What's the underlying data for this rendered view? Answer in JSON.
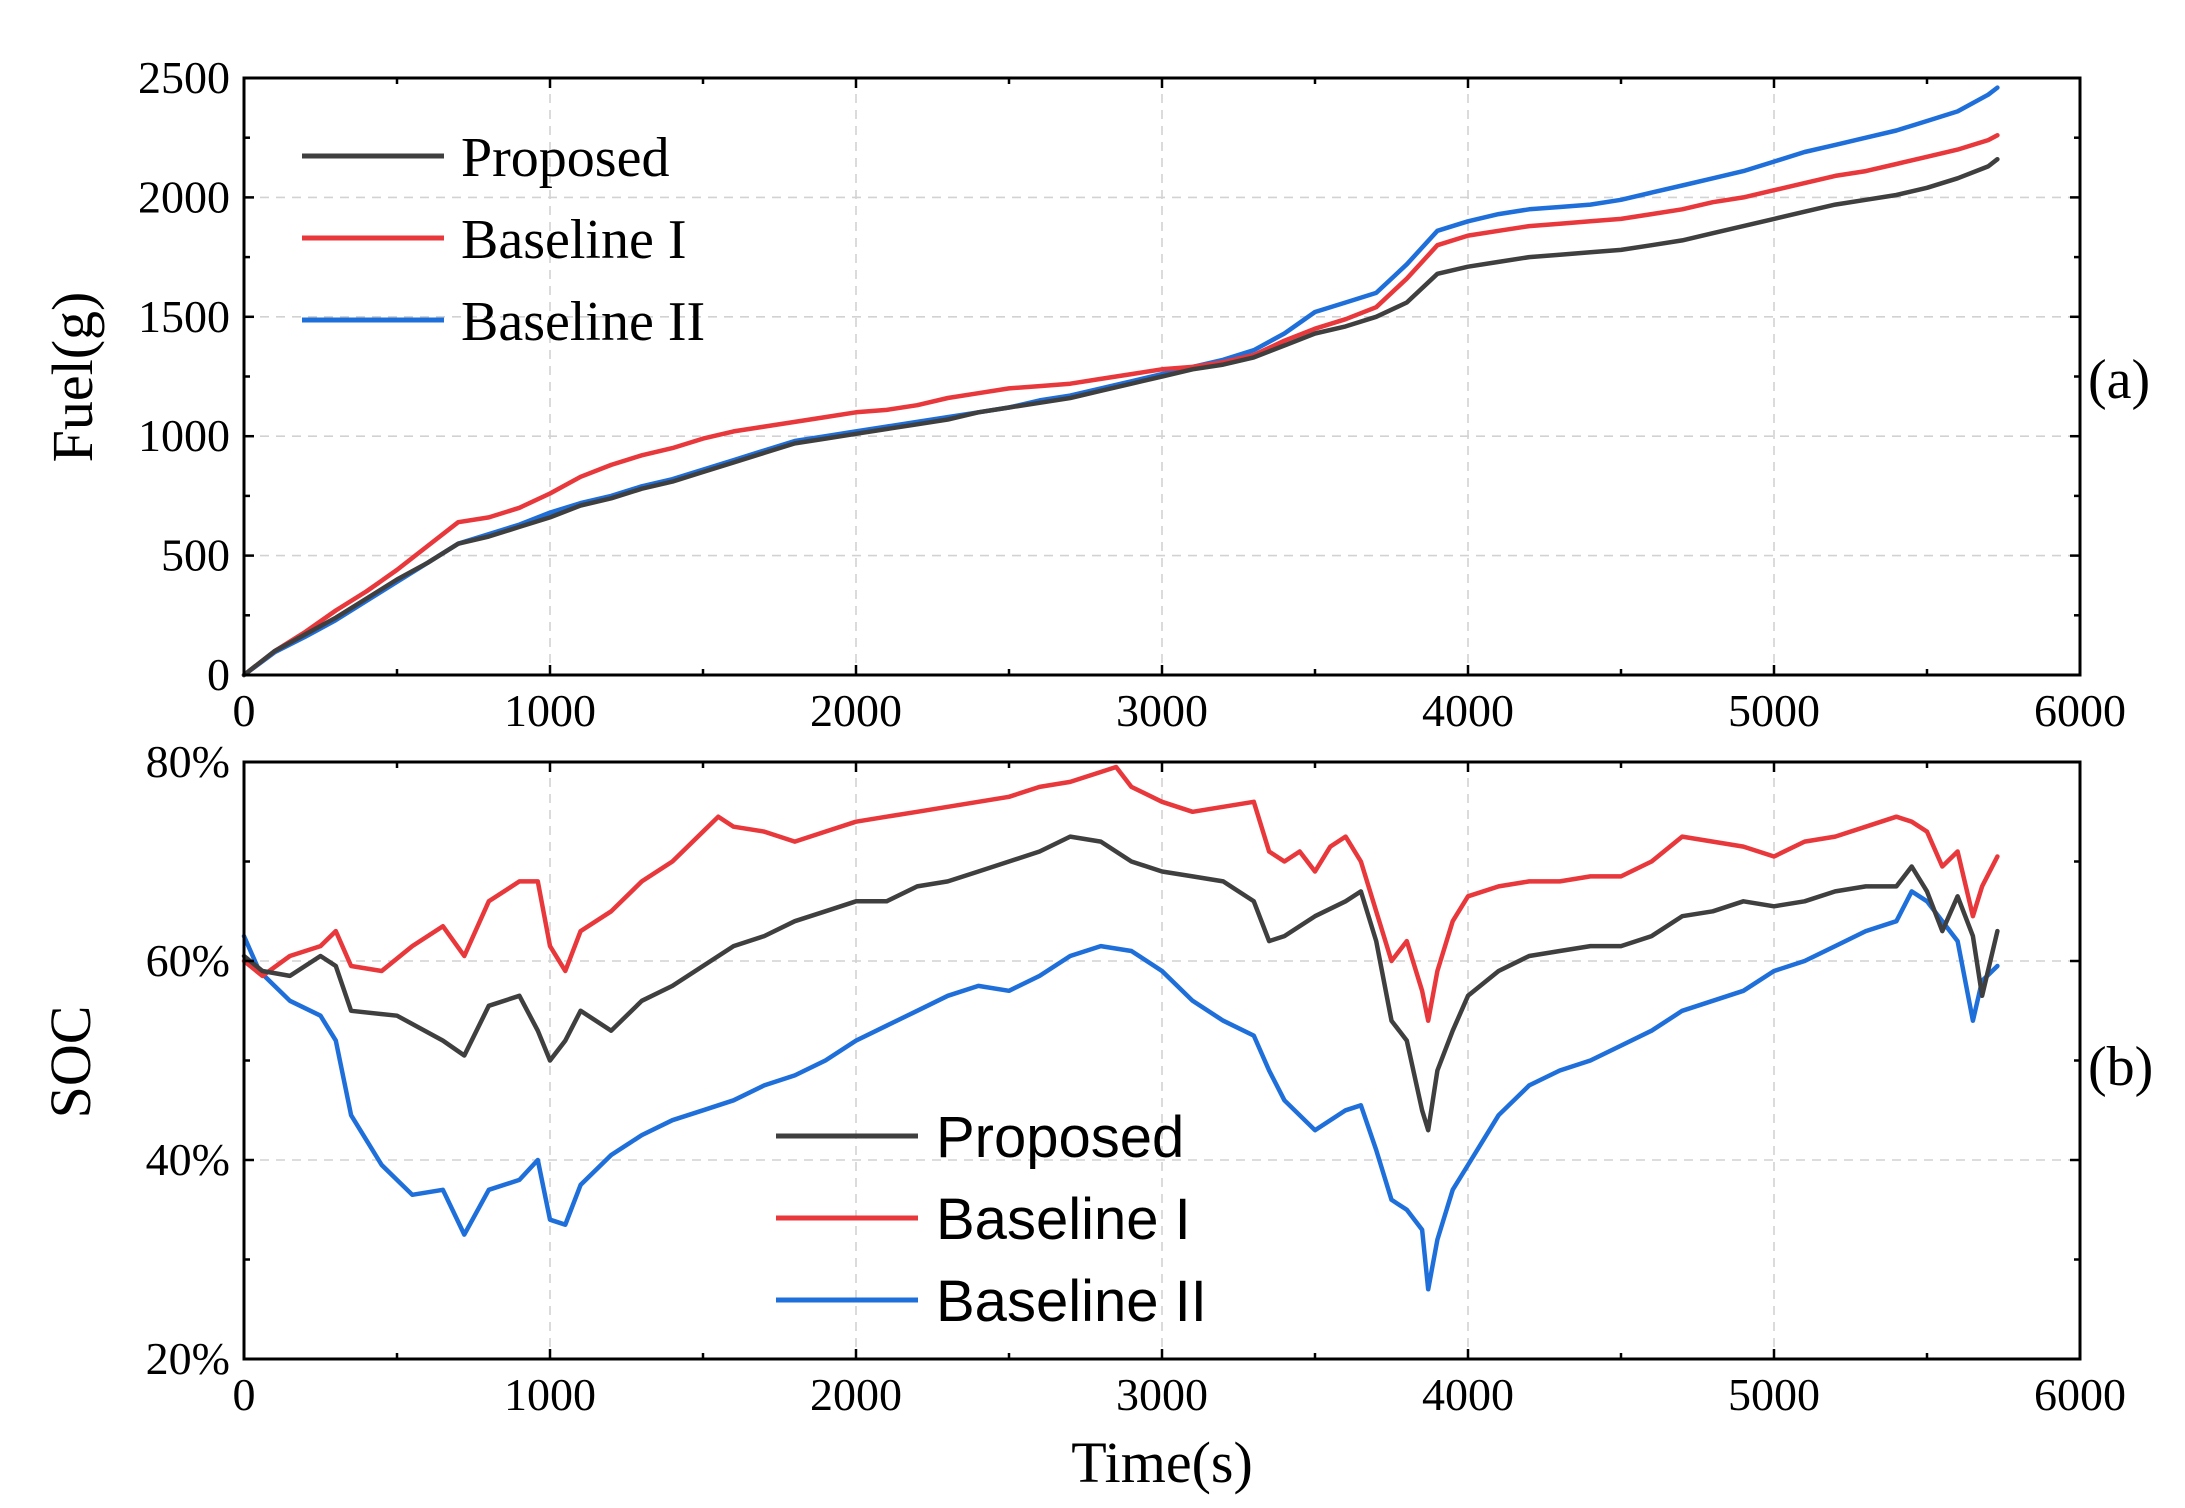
{
  "colors": {
    "Proposed": "#3f3f3f",
    "Baseline I": "#e8383b",
    "Baseline II": "#1f6fdb"
  },
  "chart_data": [
    {
      "type": "line",
      "panel_label": "(a)",
      "title": "",
      "xlabel": "",
      "ylabel": "Fuel(g)",
      "xlim": [
        0,
        6000
      ],
      "ylim": [
        0,
        2500
      ],
      "xticks": [
        0,
        1000,
        2000,
        3000,
        4000,
        5000,
        6000
      ],
      "yticks": [
        0,
        500,
        1000,
        1500,
        2000,
        2500
      ],
      "xtick_labels": [
        "0",
        "1000",
        "2000",
        "3000",
        "4000",
        "5000",
        "6000"
      ],
      "ytick_labels": [
        "0",
        "500",
        "1000",
        "1500",
        "2000",
        "2500"
      ],
      "grid": true,
      "legend_position": "top-left",
      "series": [
        {
          "name": "Proposed",
          "x": [
            0,
            100,
            200,
            300,
            400,
            500,
            600,
            700,
            800,
            900,
            1000,
            1100,
            1200,
            1300,
            1400,
            1500,
            1600,
            1700,
            1800,
            1900,
            2000,
            2100,
            2200,
            2300,
            2400,
            2500,
            2600,
            2700,
            2800,
            2900,
            3000,
            3100,
            3200,
            3300,
            3400,
            3500,
            3600,
            3700,
            3800,
            3900,
            4000,
            4100,
            4200,
            4300,
            4400,
            4500,
            4600,
            4700,
            4800,
            4900,
            5000,
            5100,
            5200,
            5300,
            5400,
            5500,
            5600,
            5700,
            5730
          ],
          "values": [
            0,
            100,
            170,
            240,
            320,
            400,
            470,
            550,
            580,
            620,
            660,
            710,
            740,
            780,
            810,
            850,
            890,
            930,
            970,
            990,
            1010,
            1030,
            1050,
            1070,
            1100,
            1120,
            1140,
            1160,
            1190,
            1220,
            1250,
            1280,
            1300,
            1330,
            1380,
            1430,
            1460,
            1500,
            1560,
            1680,
            1710,
            1730,
            1750,
            1760,
            1770,
            1780,
            1800,
            1820,
            1850,
            1880,
            1910,
            1940,
            1970,
            1990,
            2010,
            2040,
            2080,
            2130,
            2160
          ]
        },
        {
          "name": "Baseline I",
          "x": [
            0,
            100,
            200,
            300,
            400,
            500,
            600,
            700,
            800,
            900,
            1000,
            1100,
            1200,
            1300,
            1400,
            1500,
            1600,
            1700,
            1800,
            1900,
            2000,
            2100,
            2200,
            2300,
            2400,
            2500,
            2600,
            2700,
            2800,
            2900,
            3000,
            3100,
            3200,
            3300,
            3400,
            3500,
            3600,
            3700,
            3800,
            3900,
            4000,
            4100,
            4200,
            4300,
            4400,
            4500,
            4600,
            4700,
            4800,
            4900,
            5000,
            5100,
            5200,
            5300,
            5400,
            5500,
            5600,
            5700,
            5730
          ],
          "values": [
            0,
            100,
            180,
            270,
            350,
            440,
            540,
            640,
            660,
            700,
            760,
            830,
            880,
            920,
            950,
            990,
            1020,
            1040,
            1060,
            1080,
            1100,
            1110,
            1130,
            1160,
            1180,
            1200,
            1210,
            1220,
            1240,
            1260,
            1280,
            1290,
            1310,
            1340,
            1400,
            1450,
            1490,
            1540,
            1660,
            1800,
            1840,
            1860,
            1880,
            1890,
            1900,
            1910,
            1930,
            1950,
            1980,
            2000,
            2030,
            2060,
            2090,
            2110,
            2140,
            2170,
            2200,
            2240,
            2260
          ]
        },
        {
          "name": "Baseline II",
          "x": [
            0,
            100,
            200,
            300,
            400,
            500,
            600,
            700,
            800,
            900,
            1000,
            1100,
            1200,
            1300,
            1400,
            1500,
            1600,
            1700,
            1800,
            1900,
            2000,
            2100,
            2200,
            2300,
            2400,
            2500,
            2600,
            2700,
            2800,
            2900,
            3000,
            3100,
            3200,
            3300,
            3400,
            3500,
            3600,
            3700,
            3800,
            3900,
            4000,
            4100,
            4200,
            4300,
            4400,
            4500,
            4600,
            4700,
            4800,
            4900,
            5000,
            5100,
            5200,
            5300,
            5400,
            5500,
            5600,
            5700,
            5730
          ],
          "values": [
            0,
            95,
            160,
            230,
            310,
            390,
            470,
            550,
            590,
            630,
            680,
            720,
            750,
            790,
            820,
            860,
            900,
            940,
            980,
            1000,
            1020,
            1040,
            1060,
            1080,
            1100,
            1120,
            1150,
            1170,
            1200,
            1230,
            1260,
            1290,
            1320,
            1360,
            1430,
            1520,
            1560,
            1600,
            1720,
            1860,
            1900,
            1930,
            1950,
            1960,
            1970,
            1990,
            2020,
            2050,
            2080,
            2110,
            2150,
            2190,
            2220,
            2250,
            2280,
            2320,
            2360,
            2430,
            2460
          ]
        }
      ]
    },
    {
      "type": "line",
      "panel_label": "(b)",
      "title": "",
      "xlabel": "Time(s)",
      "ylabel": "SOC",
      "xlim": [
        0,
        6000
      ],
      "ylim": [
        20,
        80
      ],
      "xticks": [
        0,
        1000,
        2000,
        3000,
        4000,
        5000,
        6000
      ],
      "yticks": [
        20,
        40,
        60,
        80
      ],
      "xtick_labels": [
        "0",
        "1000",
        "2000",
        "3000",
        "4000",
        "5000",
        "6000"
      ],
      "ytick_labels": [
        "20%",
        "40%",
        "60%",
        "80%"
      ],
      "grid": true,
      "legend_position": "bottom-center",
      "series": [
        {
          "name": "Proposed",
          "x": [
            0,
            60,
            150,
            250,
            300,
            350,
            500,
            650,
            720,
            800,
            900,
            960,
            1000,
            1050,
            1100,
            1200,
            1300,
            1400,
            1500,
            1600,
            1700,
            1800,
            1900,
            2000,
            2100,
            2200,
            2300,
            2400,
            2500,
            2600,
            2700,
            2800,
            2900,
            3000,
            3100,
            3200,
            3300,
            3350,
            3400,
            3500,
            3600,
            3650,
            3700,
            3750,
            3800,
            3850,
            3870,
            3900,
            3950,
            4000,
            4100,
            4200,
            4300,
            4400,
            4500,
            4600,
            4700,
            4800,
            4900,
            5000,
            5100,
            5200,
            5300,
            5400,
            5450,
            5500,
            5550,
            5600,
            5650,
            5680,
            5730
          ],
          "values": [
            60.5,
            59,
            58.5,
            60.5,
            59.5,
            55,
            54.5,
            52,
            50.5,
            55.5,
            56.5,
            53,
            50,
            52,
            55,
            53,
            56,
            57.5,
            59.5,
            61.5,
            62.5,
            64,
            65,
            66,
            66,
            67.5,
            68,
            69,
            70,
            71,
            72.5,
            72,
            70,
            69,
            68.5,
            68,
            66,
            62,
            62.5,
            64.5,
            66,
            67,
            62,
            54,
            52,
            45,
            43,
            49,
            53,
            56.5,
            59,
            60.5,
            61,
            61.5,
            61.5,
            62.5,
            64.5,
            65,
            66,
            65.5,
            66,
            67,
            67.5,
            67.5,
            69.5,
            67,
            63,
            66.5,
            62.5,
            56.5,
            63
          ]
        },
        {
          "name": "Baseline I",
          "x": [
            0,
            60,
            150,
            250,
            300,
            350,
            450,
            550,
            650,
            720,
            800,
            900,
            960,
            1000,
            1050,
            1100,
            1200,
            1300,
            1400,
            1500,
            1550,
            1600,
            1700,
            1800,
            1900,
            2000,
            2100,
            2200,
            2300,
            2400,
            2500,
            2600,
            2700,
            2800,
            2850,
            2900,
            3000,
            3100,
            3200,
            3300,
            3350,
            3400,
            3450,
            3500,
            3550,
            3600,
            3650,
            3700,
            3750,
            3800,
            3850,
            3870,
            3900,
            3950,
            4000,
            4100,
            4200,
            4300,
            4400,
            4500,
            4600,
            4700,
            4800,
            4900,
            5000,
            5100,
            5200,
            5300,
            5400,
            5450,
            5500,
            5550,
            5600,
            5650,
            5680,
            5730
          ],
          "values": [
            60,
            58.5,
            60.5,
            61.5,
            63,
            59.5,
            59,
            61.5,
            63.5,
            60.5,
            66,
            68,
            68,
            61.5,
            59,
            63,
            65,
            68,
            70,
            73,
            74.5,
            73.5,
            73,
            72,
            73,
            74,
            74.5,
            75,
            75.5,
            76,
            76.5,
            77.5,
            78,
            79,
            79.5,
            77.5,
            76,
            75,
            75.5,
            76,
            71,
            70,
            71,
            69,
            71.5,
            72.5,
            70,
            65,
            60,
            62,
            57,
            54,
            59,
            64,
            66.5,
            67.5,
            68,
            68,
            68.5,
            68.5,
            70,
            72.5,
            72,
            71.5,
            70.5,
            72,
            72.5,
            73.5,
            74.5,
            74,
            73,
            69.5,
            71,
            64.5,
            67.5,
            70.5
          ]
        },
        {
          "name": "Baseline II",
          "x": [
            0,
            50,
            150,
            250,
            300,
            350,
            450,
            550,
            650,
            720,
            800,
            900,
            960,
            1000,
            1050,
            1100,
            1200,
            1300,
            1400,
            1500,
            1600,
            1700,
            1800,
            1900,
            2000,
            2100,
            2200,
            2300,
            2400,
            2500,
            2600,
            2700,
            2800,
            2900,
            3000,
            3100,
            3200,
            3300,
            3350,
            3400,
            3500,
            3600,
            3650,
            3700,
            3750,
            3800,
            3850,
            3870,
            3900,
            3950,
            4000,
            4100,
            4200,
            4300,
            4400,
            4500,
            4600,
            4700,
            4800,
            4900,
            5000,
            5100,
            5200,
            5300,
            5400,
            5450,
            5500,
            5550,
            5600,
            5650,
            5680,
            5730
          ],
          "values": [
            62.5,
            59,
            56,
            54.5,
            52,
            44.5,
            39.5,
            36.5,
            37,
            32.5,
            37,
            38,
            40,
            34,
            33.5,
            37.5,
            40.5,
            42.5,
            44,
            45,
            46,
            47.5,
            48.5,
            50,
            52,
            53.5,
            55,
            56.5,
            57.5,
            57,
            58.5,
            60.5,
            61.5,
            61,
            59,
            56,
            54,
            52.5,
            49,
            46,
            43,
            45,
            45.5,
            41,
            36,
            35,
            33,
            27,
            32,
            37,
            39.5,
            44.5,
            47.5,
            49,
            50,
            51.5,
            53,
            55,
            56,
            57,
            59,
            60,
            61.5,
            63,
            64,
            67,
            66,
            64,
            62,
            54,
            58,
            59.5
          ]
        }
      ]
    }
  ]
}
